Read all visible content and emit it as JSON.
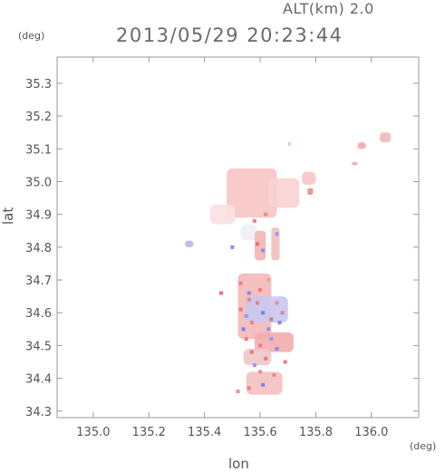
{
  "header": {
    "altitude_label": "ALT(km) 2.0",
    "datetime": "2013/05/29 20:23:44"
  },
  "chart_data": {
    "type": "heatmap",
    "title": "2013/05/29 20:23:44",
    "subtitle": "ALT(km) 2.0",
    "xlabel": "lon",
    "ylabel": "lat",
    "x_unit": "(deg)",
    "y_unit": "(deg)",
    "xlim": [
      134.87,
      136.17
    ],
    "ylim": [
      34.28,
      35.38
    ],
    "x_ticks": [
      135.0,
      135.2,
      135.4,
      135.6,
      135.8,
      136.0
    ],
    "x_tick_labels": [
      "135.0",
      "135.2",
      "135.4",
      "135.6",
      "135.8",
      "136.0"
    ],
    "y_ticks": [
      34.3,
      34.4,
      34.5,
      34.6,
      34.7,
      34.8,
      34.9,
      35.0,
      35.1,
      35.2,
      35.3
    ],
    "y_tick_labels": [
      "34.3",
      "34.4",
      "34.5",
      "34.6",
      "34.7",
      "34.8",
      "34.9",
      "35.0",
      "35.1",
      "35.2",
      "35.3"
    ],
    "grid": false,
    "colors": {
      "positive": "#f08a8a",
      "negative": "#8a8af0",
      "light_positive": "#f7c4c4"
    },
    "regions": [
      {
        "lon": [
          135.48,
          135.66
        ],
        "lat": [
          34.89,
          35.04
        ],
        "color": "#f7c4c4"
      },
      {
        "lon": [
          135.63,
          135.74
        ],
        "lat": [
          34.92,
          35.01
        ],
        "color": "#f9d2d2"
      },
      {
        "lon": [
          135.42,
          135.51
        ],
        "lat": [
          34.87,
          34.93
        ],
        "color": "#fbe0e0"
      },
      {
        "lon": [
          135.33,
          135.36
        ],
        "lat": [
          34.8,
          34.82
        ],
        "color": "#b8b8ee"
      },
      {
        "lon": [
          135.75,
          135.8
        ],
        "lat": [
          34.99,
          35.03
        ],
        "color": "#f7c6c6"
      },
      {
        "lon": [
          135.95,
          135.98
        ],
        "lat": [
          35.1,
          35.12
        ],
        "color": "#f5a8a8"
      },
      {
        "lon": [
          136.03,
          136.07
        ],
        "lat": [
          35.12,
          35.15
        ],
        "color": "#f5b6b6"
      },
      {
        "lon": [
          135.93,
          135.95
        ],
        "lat": [
          35.05,
          35.06
        ],
        "color": "#f4a4a4"
      },
      {
        "lon": [
          135.77,
          135.79
        ],
        "lat": [
          34.96,
          34.98
        ],
        "color": "#ee8888"
      },
      {
        "lon": [
          135.7,
          135.71
        ],
        "lat": [
          35.11,
          35.12
        ],
        "color": "#f3b6b6"
      },
      {
        "lon": [
          135.53,
          135.59
        ],
        "lat": [
          34.82,
          34.87
        ],
        "color": "#eeeef8"
      },
      {
        "lon": [
          135.58,
          135.62
        ],
        "lat": [
          34.76,
          34.85
        ],
        "color": "#f4b4b4"
      },
      {
        "lon": [
          135.64,
          135.67
        ],
        "lat": [
          34.76,
          34.86
        ],
        "color": "#f2c0c0"
      },
      {
        "lon": [
          135.52,
          135.64
        ],
        "lat": [
          34.52,
          34.72
        ],
        "color": "#f4b8b8"
      },
      {
        "lon": [
          135.55,
          135.7
        ],
        "lat": [
          34.57,
          34.65
        ],
        "color": "#c8c8f2"
      },
      {
        "lon": [
          135.58,
          135.72
        ],
        "lat": [
          34.48,
          34.54
        ],
        "color": "#f3adad"
      },
      {
        "lon": [
          135.54,
          135.64
        ],
        "lat": [
          34.44,
          34.49
        ],
        "color": "#f0c6c6"
      },
      {
        "lon": [
          135.55,
          135.68
        ],
        "lat": [
          34.35,
          34.42
        ],
        "color": "#f4c0c0"
      }
    ],
    "speckles": [
      {
        "lon": 135.53,
        "lat": 34.69,
        "color": "#ee7f7f"
      },
      {
        "lon": 135.56,
        "lat": 34.66,
        "color": "#8888ee"
      },
      {
        "lon": 135.59,
        "lat": 34.63,
        "color": "#ee7f7f"
      },
      {
        "lon": 135.61,
        "lat": 34.6,
        "color": "#7f7fe8"
      },
      {
        "lon": 135.57,
        "lat": 34.57,
        "color": "#ee8080"
      },
      {
        "lon": 135.63,
        "lat": 34.55,
        "color": "#9090ee"
      },
      {
        "lon": 135.55,
        "lat": 34.52,
        "color": "#ec7a7a"
      },
      {
        "lon": 135.6,
        "lat": 34.5,
        "color": "#ee8080"
      },
      {
        "lon": 135.66,
        "lat": 34.49,
        "color": "#8a8aee"
      },
      {
        "lon": 135.62,
        "lat": 34.46,
        "color": "#ec7878"
      },
      {
        "lon": 135.58,
        "lat": 34.44,
        "color": "#9a9aee"
      },
      {
        "lon": 135.65,
        "lat": 34.41,
        "color": "#ee8888"
      },
      {
        "lon": 135.61,
        "lat": 34.38,
        "color": "#8080ea"
      },
      {
        "lon": 135.56,
        "lat": 34.37,
        "color": "#ee8080"
      },
      {
        "lon": 135.53,
        "lat": 34.61,
        "color": "#ec7878"
      },
      {
        "lon": 135.66,
        "lat": 34.63,
        "color": "#ee8a8a"
      },
      {
        "lon": 135.67,
        "lat": 34.57,
        "color": "#8585ea"
      },
      {
        "lon": 135.54,
        "lat": 34.55,
        "color": "#7f7fe8"
      },
      {
        "lon": 135.6,
        "lat": 34.67,
        "color": "#ee7a7a"
      },
      {
        "lon": 135.63,
        "lat": 34.7,
        "color": "#f0a0a0"
      },
      {
        "lon": 135.57,
        "lat": 34.48,
        "color": "#ee7777"
      },
      {
        "lon": 135.69,
        "lat": 34.45,
        "color": "#ee7a7a"
      },
      {
        "lon": 135.64,
        "lat": 34.52,
        "color": "#9595ee"
      },
      {
        "lon": 135.6,
        "lat": 34.42,
        "color": "#ec8a8a"
      },
      {
        "lon": 135.52,
        "lat": 34.36,
        "color": "#ee9090"
      },
      {
        "lon": 135.46,
        "lat": 34.66,
        "color": "#ee7070"
      },
      {
        "lon": 135.59,
        "lat": 34.81,
        "color": "#ec7070"
      },
      {
        "lon": 135.61,
        "lat": 34.79,
        "color": "#8a8aee"
      },
      {
        "lon": 135.66,
        "lat": 34.84,
        "color": "#9a9aee"
      },
      {
        "lon": 135.5,
        "lat": 34.8,
        "color": "#8a8aee"
      },
      {
        "lon": 135.58,
        "lat": 34.88,
        "color": "#ee8080"
      },
      {
        "lon": 135.62,
        "lat": 34.9,
        "color": "#f08a8a"
      },
      {
        "lon": 135.64,
        "lat": 34.58,
        "color": "#ee7070"
      },
      {
        "lon": 135.68,
        "lat": 34.6,
        "color": "#ee8080"
      },
      {
        "lon": 135.56,
        "lat": 34.64,
        "color": "#ee7f7f"
      },
      {
        "lon": 135.55,
        "lat": 34.59,
        "color": "#9a9aee"
      }
    ]
  }
}
